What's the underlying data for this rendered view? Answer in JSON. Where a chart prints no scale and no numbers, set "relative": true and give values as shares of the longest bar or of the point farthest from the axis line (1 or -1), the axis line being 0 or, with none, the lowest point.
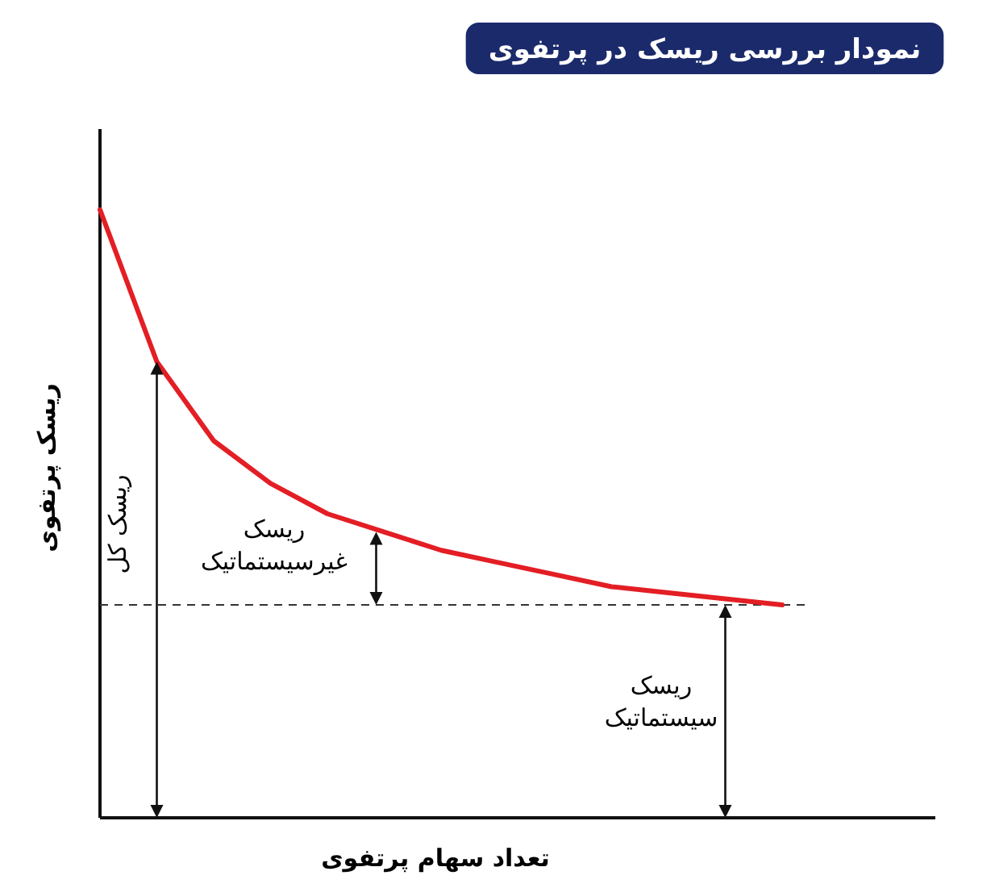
{
  "chart_data": {
    "type": "line",
    "relative": true,
    "title": "نمودار بررسی ریسک در پرتفوی",
    "xlabel": "تعداد سهام پرتفوی",
    "ylabel": "ریسک پرتفوی",
    "categories": [
      null,
      null,
      null,
      null,
      null,
      null,
      null,
      null,
      null,
      null,
      null,
      null,
      null
    ],
    "values": [
      1.0,
      0.75,
      0.62,
      0.55,
      0.5,
      0.47,
      0.44,
      0.42,
      0.4,
      0.38,
      0.37,
      0.36,
      0.35
    ],
    "color": "#e31e24",
    "ref_lines": [
      {
        "axis": "y",
        "value": 0.35,
        "color": "#333333",
        "line_style": "dashed"
      }
    ],
    "annotations": [
      "ریسک کل",
      "ریسک غیرسیستماتیک",
      "ریسک سیستماتیک"
    ]
  }
}
